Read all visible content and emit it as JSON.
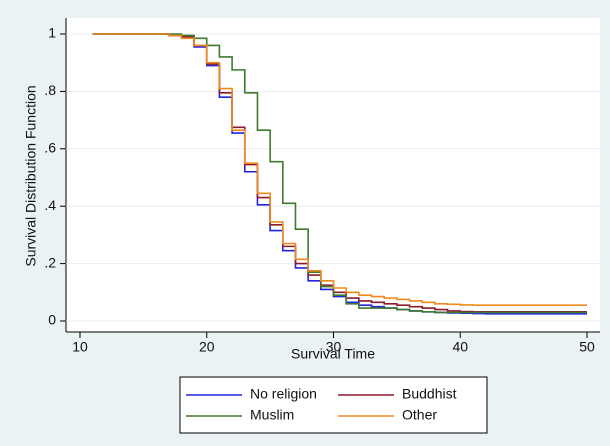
{
  "chart_data": {
    "type": "step",
    "x_label": "Survival Time",
    "y_label": "Survival Distribution Function",
    "x": [
      11,
      12,
      13,
      14,
      15,
      16,
      17,
      18,
      19,
      20,
      21,
      22,
      23,
      24,
      25,
      26,
      27,
      28,
      29,
      30,
      31,
      32,
      33,
      34,
      35,
      36,
      37,
      38,
      39,
      40,
      41,
      42,
      43,
      44,
      45,
      46,
      47,
      48,
      49,
      50
    ],
    "xlim": [
      10,
      50
    ],
    "xticks": [
      10,
      20,
      30,
      40,
      50
    ],
    "ylim": [
      0,
      1
    ],
    "yticks": [
      0,
      {
        "value": 0.2,
        "label": ".2"
      },
      {
        "value": 0.4,
        "label": ".4"
      },
      {
        "value": 0.6,
        "label": ".6"
      },
      {
        "value": 0.8,
        "label": ".8"
      },
      1
    ],
    "grid": true,
    "legend": "bottom",
    "series": [
      {
        "name": "No religion",
        "color": "#2424e0",
        "values": [
          1,
          1,
          1,
          1,
          1,
          1,
          0.995,
          0.99,
          0.955,
          0.89,
          0.78,
          0.655,
          0.52,
          0.405,
          0.315,
          0.245,
          0.185,
          0.14,
          0.11,
          0.085,
          0.065,
          0.055,
          0.05,
          0.045,
          0.04,
          0.035,
          0.032,
          0.03,
          0.028,
          0.027,
          0.026,
          0.025,
          0.025,
          0.025,
          0.025,
          0.025,
          0.025,
          0.025,
          0.025,
          0.025
        ]
      },
      {
        "name": "Buddhist",
        "color": "#8b1c2c",
        "values": [
          1,
          1,
          1,
          1,
          1,
          1,
          0.995,
          0.99,
          0.96,
          0.895,
          0.795,
          0.675,
          0.545,
          0.43,
          0.335,
          0.26,
          0.2,
          0.16,
          0.125,
          0.1,
          0.08,
          0.07,
          0.065,
          0.06,
          0.055,
          0.05,
          0.045,
          0.04,
          0.035,
          0.033,
          0.032,
          0.032,
          0.032,
          0.032,
          0.032,
          0.032,
          0.032,
          0.032,
          0.032,
          0.032
        ]
      },
      {
        "name": "Muslim",
        "color": "#3f7a2e",
        "values": [
          1,
          1,
          1,
          1,
          1,
          1,
          1,
          0.995,
          0.985,
          0.96,
          0.92,
          0.875,
          0.795,
          0.665,
          0.555,
          0.41,
          0.32,
          0.17,
          0.12,
          0.09,
          0.06,
          0.045,
          0.045,
          0.045,
          0.04,
          0.035,
          0.032,
          0.03,
          0.03,
          0.03,
          0.03,
          0.03,
          0.03,
          0.03,
          0.03,
          0.03,
          0.03,
          0.03,
          0.03,
          0.03
        ]
      },
      {
        "name": "Other",
        "color": "#f08a1c",
        "values": [
          1,
          1,
          1,
          1,
          1,
          1,
          0.995,
          0.985,
          0.96,
          0.9,
          0.81,
          0.665,
          0.55,
          0.445,
          0.345,
          0.27,
          0.215,
          0.175,
          0.14,
          0.115,
          0.1,
          0.09,
          0.085,
          0.08,
          0.075,
          0.07,
          0.065,
          0.06,
          0.058,
          0.056,
          0.055,
          0.055,
          0.055,
          0.055,
          0.055,
          0.055,
          0.055,
          0.055,
          0.055,
          0.055
        ]
      }
    ]
  }
}
